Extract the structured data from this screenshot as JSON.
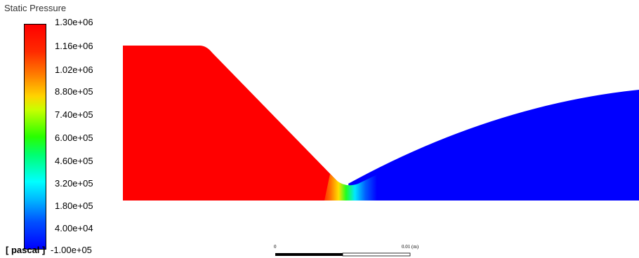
{
  "legend": {
    "title": "Static Pressure",
    "unit": "[ pascal ]",
    "ticks": [
      "1.30e+06",
      "1.16e+06",
      "1.02e+06",
      "8.80e+05",
      "7.40e+05",
      "6.00e+05",
      "4.60e+05",
      "3.20e+05",
      "1.80e+05",
      "4.00e+04",
      "-1.00e+05"
    ]
  },
  "scale": {
    "start_label": "0",
    "end_label": "0.01",
    "unit_label": "(m)"
  },
  "colors": {
    "high": "#ff0000",
    "low": "#0000ff"
  }
}
